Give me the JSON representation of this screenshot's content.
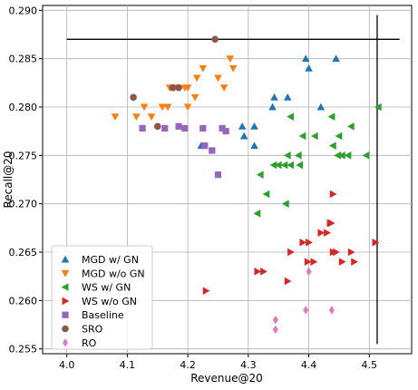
{
  "chart_data": {
    "type": "scatter",
    "xlabel": "Revenue@20",
    "ylabel": "Recall@20",
    "xlim": [
      3.96,
      4.57
    ],
    "ylim": [
      0.2545,
      0.2905
    ],
    "x_ticks": [
      "4.0",
      "4.1",
      "4.2",
      "4.3",
      "4.4",
      "4.5"
    ],
    "x_tick_values": [
      4.0,
      4.1,
      4.2,
      4.3,
      4.4,
      4.5
    ],
    "y_ticks": [
      "0.255",
      "0.260",
      "0.265",
      "0.270",
      "0.275",
      "0.280",
      "0.285",
      "0.290"
    ],
    "y_tick_values": [
      0.255,
      0.26,
      0.265,
      0.27,
      0.275,
      0.28,
      0.285,
      0.29
    ],
    "grid": true,
    "legend_position": "lower-left",
    "reference_lines": [
      {
        "orientation": "horizontal",
        "y": 0.287,
        "x_from": 4.0,
        "x_to": 4.55
      },
      {
        "orientation": "vertical",
        "x": 4.513,
        "y_from": 0.2555,
        "y_to": 0.2895
      }
    ],
    "series": [
      {
        "name": "MGD w/ GN",
        "marker": "triangle-up",
        "color": "#1f77b4",
        "points": [
          [
            4.222,
            0.276
          ],
          [
            4.29,
            0.278
          ],
          [
            4.293,
            0.277
          ],
          [
            4.31,
            0.278
          ],
          [
            4.31,
            0.276
          ],
          [
            4.34,
            0.28
          ],
          [
            4.343,
            0.281
          ],
          [
            4.365,
            0.281
          ],
          [
            4.42,
            0.28
          ],
          [
            4.395,
            0.285
          ],
          [
            4.4,
            0.284
          ],
          [
            4.445,
            0.285
          ]
        ]
      },
      {
        "name": "MGD w/o GN",
        "marker": "triangle-down",
        "color": "#ff7f0e",
        "points": [
          [
            4.08,
            0.279
          ],
          [
            4.115,
            0.279
          ],
          [
            4.128,
            0.28
          ],
          [
            4.14,
            0.279
          ],
          [
            4.158,
            0.28
          ],
          [
            4.167,
            0.28
          ],
          [
            4.17,
            0.282
          ],
          [
            4.178,
            0.282
          ],
          [
            4.195,
            0.282
          ],
          [
            4.2,
            0.28
          ],
          [
            4.2,
            0.282
          ],
          [
            4.212,
            0.281
          ],
          [
            4.215,
            0.283
          ],
          [
            4.225,
            0.284
          ],
          [
            4.25,
            0.283
          ],
          [
            4.26,
            0.282
          ],
          [
            4.27,
            0.285
          ],
          [
            4.275,
            0.284
          ]
        ]
      },
      {
        "name": "WS w/ GN",
        "marker": "triangle-left",
        "color": "#2ca02c",
        "points": [
          [
            4.315,
            0.269
          ],
          [
            4.32,
            0.273
          ],
          [
            4.33,
            0.271
          ],
          [
            4.342,
            0.274
          ],
          [
            4.35,
            0.274
          ],
          [
            4.36,
            0.274
          ],
          [
            4.362,
            0.27
          ],
          [
            4.365,
            0.275
          ],
          [
            4.37,
            0.274
          ],
          [
            4.37,
            0.279
          ],
          [
            4.383,
            0.275
          ],
          [
            4.385,
            0.274
          ],
          [
            4.39,
            0.277
          ],
          [
            4.41,
            0.277
          ],
          [
            4.438,
            0.279
          ],
          [
            4.44,
            0.276
          ],
          [
            4.448,
            0.275
          ],
          [
            4.45,
            0.277
          ],
          [
            4.455,
            0.275
          ],
          [
            4.465,
            0.275
          ],
          [
            4.47,
            0.278
          ],
          [
            4.495,
            0.275
          ],
          [
            4.515,
            0.28
          ]
        ]
      },
      {
        "name": "WS w/o GN",
        "marker": "triangle-right",
        "color": "#d62728",
        "points": [
          [
            4.23,
            0.261
          ],
          [
            4.315,
            0.263
          ],
          [
            4.325,
            0.263
          ],
          [
            4.365,
            0.262
          ],
          [
            4.37,
            0.265
          ],
          [
            4.39,
            0.266
          ],
          [
            4.398,
            0.264
          ],
          [
            4.4,
            0.266
          ],
          [
            4.408,
            0.264
          ],
          [
            4.42,
            0.267
          ],
          [
            4.43,
            0.267
          ],
          [
            4.435,
            0.268
          ],
          [
            4.437,
            0.268
          ],
          [
            4.44,
            0.271
          ],
          [
            4.44,
            0.265
          ],
          [
            4.445,
            0.265
          ],
          [
            4.455,
            0.264
          ],
          [
            4.47,
            0.265
          ],
          [
            4.475,
            0.264
          ],
          [
            4.51,
            0.266
          ]
        ]
      },
      {
        "name": "Baseline",
        "marker": "square",
        "color": "#9467bd",
        "points": [
          [
            4.125,
            0.2778
          ],
          [
            4.162,
            0.2778
          ],
          [
            4.185,
            0.278
          ],
          [
            4.195,
            0.2778
          ],
          [
            4.225,
            0.2778
          ],
          [
            4.228,
            0.276
          ],
          [
            4.24,
            0.2755
          ],
          [
            4.25,
            0.273
          ],
          [
            4.257,
            0.2778
          ],
          [
            4.263,
            0.2775
          ]
        ]
      },
      {
        "name": "SRO",
        "marker": "circle",
        "color": "#8c564b",
        "points": [
          [
            4.11,
            0.281
          ],
          [
            4.175,
            0.282
          ],
          [
            4.185,
            0.282
          ],
          [
            4.245,
            0.287
          ],
          [
            4.15,
            0.278
          ]
        ]
      },
      {
        "name": "RO",
        "marker": "diamond",
        "color": "#e377c2",
        "points": [
          [
            4.345,
            0.258
          ],
          [
            4.345,
            0.257
          ],
          [
            4.395,
            0.259
          ],
          [
            4.4,
            0.263
          ],
          [
            4.438,
            0.259
          ]
        ]
      }
    ]
  }
}
